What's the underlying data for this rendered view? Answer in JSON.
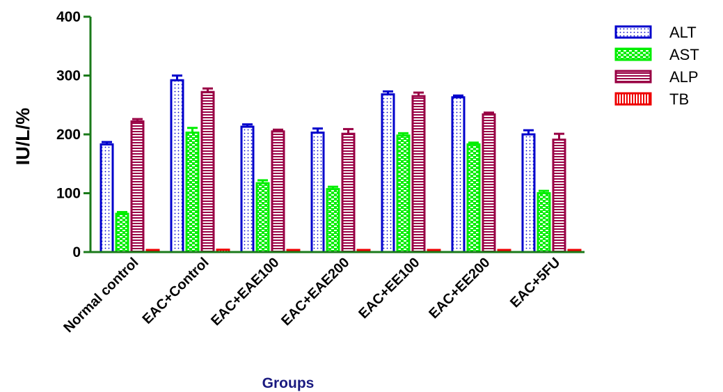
{
  "chart_data": {
    "type": "bar",
    "xlabel": "Groups",
    "ylabel": "IU/L/%",
    "ylim": [
      0,
      400
    ],
    "yticks": [
      0,
      100,
      200,
      300,
      400
    ],
    "grid": false,
    "legend_position": "top-right",
    "categories": [
      "Normal control",
      "EAC+Control",
      "EAC+EAE100",
      "EAC+EAE200",
      "EAC+EE100",
      "EAC+EE200",
      "EAC+5FU"
    ],
    "series": [
      {
        "name": "ALT",
        "color": "#0000cc",
        "values": [
          183,
          292,
          213,
          203,
          268,
          263,
          200
        ],
        "errors": [
          4,
          8,
          4,
          7,
          5,
          3,
          7
        ]
      },
      {
        "name": "AST",
        "color": "#00ee00",
        "values": [
          65,
          203,
          117,
          107,
          198,
          183,
          100
        ],
        "errors": [
          3,
          8,
          5,
          4,
          4,
          3,
          4
        ]
      },
      {
        "name": "ALP",
        "color": "#990044",
        "values": [
          222,
          272,
          205,
          201,
          265,
          234,
          191
        ],
        "errors": [
          4,
          6,
          3,
          8,
          6,
          3,
          10
        ]
      },
      {
        "name": "TB",
        "color": "#ee0000",
        "values": [
          1,
          4,
          1,
          1,
          3,
          3,
          1
        ],
        "errors": [
          0,
          0,
          0,
          0,
          0,
          0,
          0
        ]
      }
    ]
  }
}
